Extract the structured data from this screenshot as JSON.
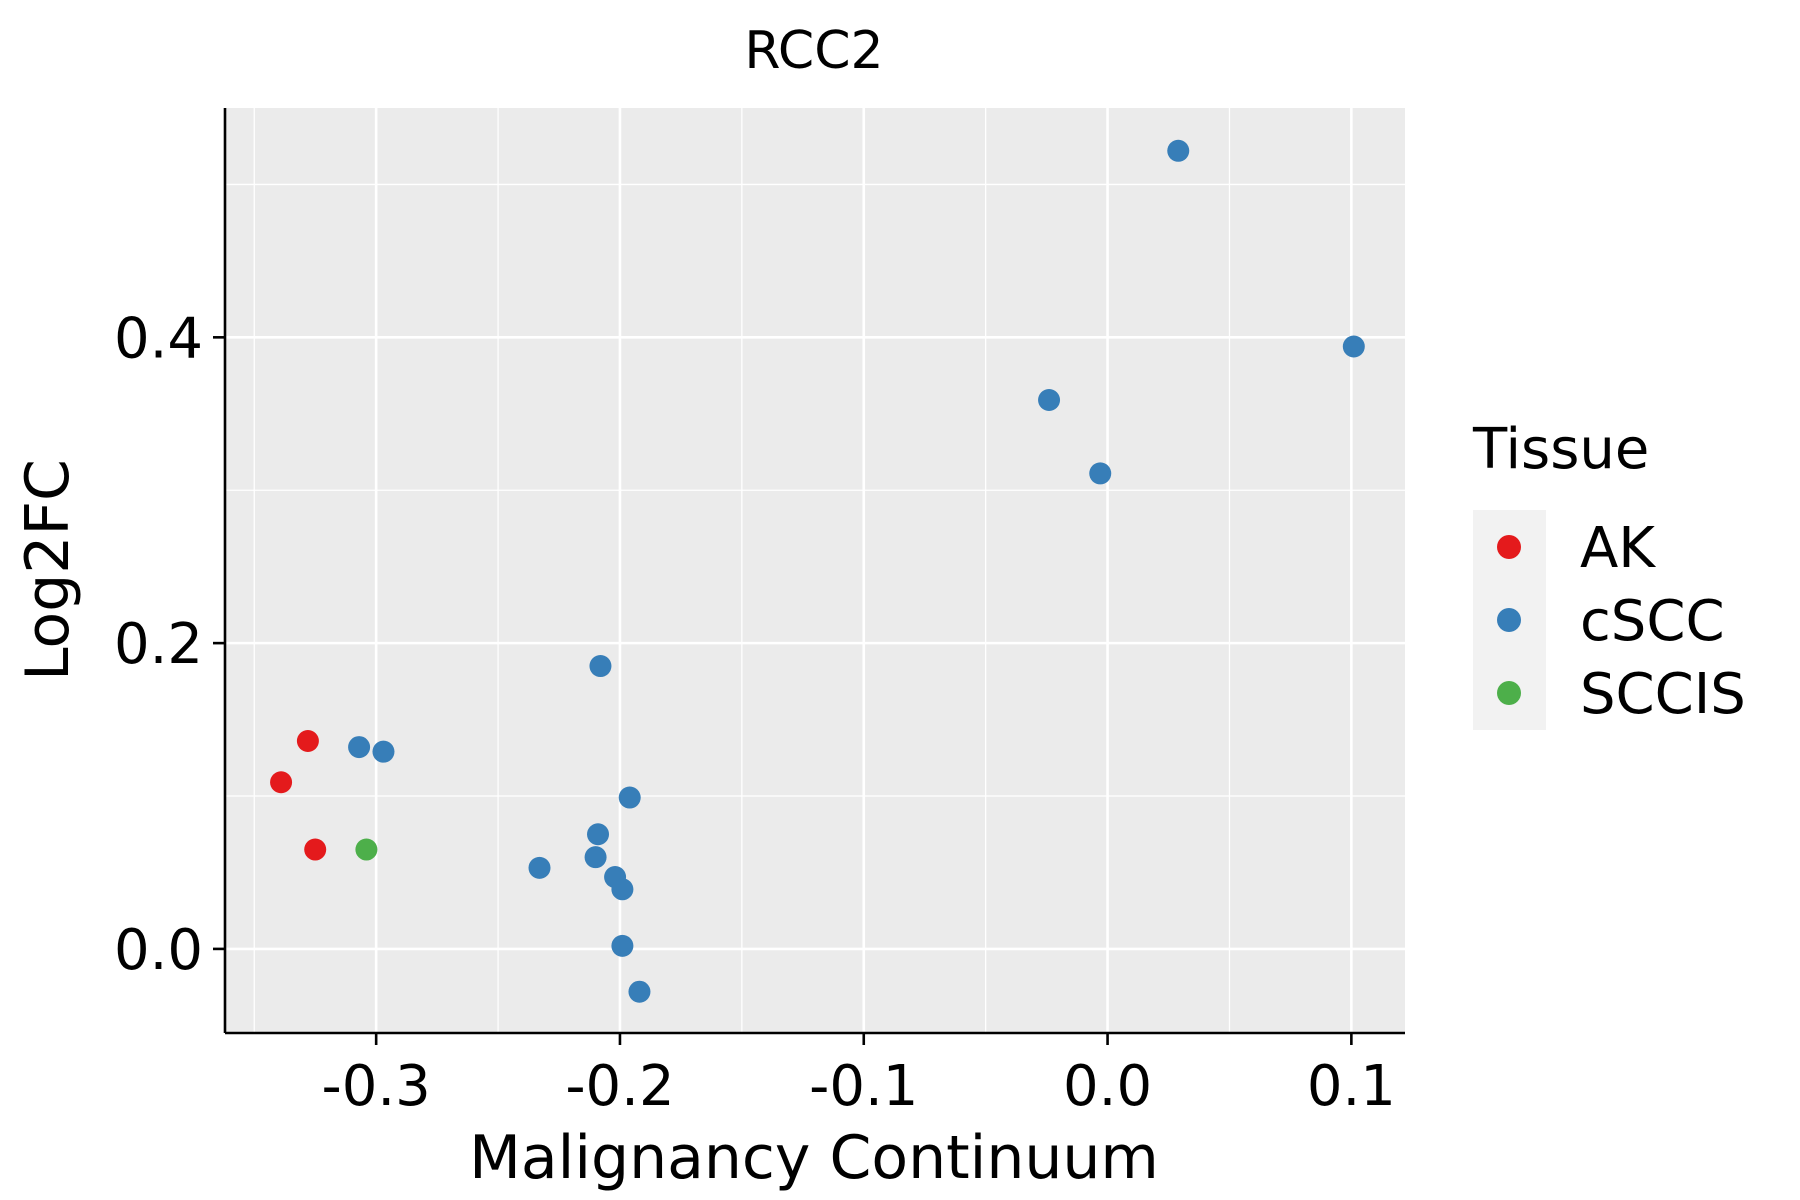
{
  "chart_data": {
    "type": "scatter",
    "title": "RCC2",
    "xlabel": "Malignancy Continuum",
    "ylabel": "Log2FC",
    "xlim": [
      -0.362,
      0.122
    ],
    "ylim": [
      -0.055,
      0.55
    ],
    "x_ticks": [
      -0.3,
      -0.2,
      -0.1,
      0.0,
      0.1
    ],
    "x_tick_labels": [
      "-0.3",
      "-0.2",
      "-0.1",
      "0.0",
      "0.1"
    ],
    "y_ticks": [
      0.0,
      0.2,
      0.4
    ],
    "y_tick_labels": [
      "0.0",
      "0.2",
      "0.4"
    ],
    "grid": true,
    "legend": {
      "title": "Tissue",
      "position": "right",
      "entries": [
        {
          "label": "AK",
          "color": "#E41A1C"
        },
        {
          "label": "cSCC",
          "color": "#377EB8"
        },
        {
          "label": "SCCIS",
          "color": "#4DAF4A"
        }
      ]
    },
    "series": [
      {
        "name": "AK",
        "color": "#E41A1C",
        "points": [
          {
            "x": -0.339,
            "y": 0.109
          },
          {
            "x": -0.328,
            "y": 0.136
          },
          {
            "x": -0.325,
            "y": 0.065
          }
        ]
      },
      {
        "name": "cSCC",
        "color": "#377EB8",
        "points": [
          {
            "x": 0.029,
            "y": 0.522
          },
          {
            "x": 0.101,
            "y": 0.394
          },
          {
            "x": -0.024,
            "y": 0.359
          },
          {
            "x": -0.003,
            "y": 0.311
          },
          {
            "x": -0.208,
            "y": 0.185
          },
          {
            "x": -0.307,
            "y": 0.132
          },
          {
            "x": -0.297,
            "y": 0.129
          },
          {
            "x": -0.196,
            "y": 0.099
          },
          {
            "x": -0.209,
            "y": 0.075
          },
          {
            "x": -0.21,
            "y": 0.06
          },
          {
            "x": -0.233,
            "y": 0.053
          },
          {
            "x": -0.202,
            "y": 0.047
          },
          {
            "x": -0.199,
            "y": 0.039
          },
          {
            "x": -0.199,
            "y": 0.002
          },
          {
            "x": -0.192,
            "y": -0.028
          }
        ]
      },
      {
        "name": "SCCIS",
        "color": "#4DAF4A",
        "points": [
          {
            "x": -0.304,
            "y": 0.065
          }
        ]
      }
    ]
  },
  "colors": {
    "panel_background": "#EBEBEB",
    "legend_key_background": "#F2F2F2",
    "grid": "#FFFFFF"
  }
}
